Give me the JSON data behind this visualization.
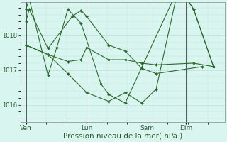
{
  "background_color": "#d8f5f0",
  "grid_color": "#c0ddd8",
  "line_color": "#2d6a2d",
  "marker_color": "#2d6a2d",
  "xlabel": "Pression niveau de la mer( hPa )",
  "xlabel_fontsize": 7.5,
  "yticks": [
    1016,
    1017,
    1018
  ],
  "ylim": [
    1015.5,
    1018.95
  ],
  "xtick_labels": [
    "Ven",
    "Lun",
    "Sam",
    "Dim"
  ],
  "vline_color": "#555555",
  "series": [
    {
      "x": [
        0.0,
        0.3,
        2.0,
        4.2,
        5.0,
        5.5,
        7.5,
        9.0,
        10.5,
        11.8,
        16.0
      ],
      "y": [
        1018.4,
        1018.75,
        1017.62,
        1018.55,
        1018.72,
        1018.55,
        1017.72,
        1017.55,
        1017.05,
        1016.9,
        1017.1
      ]
    },
    {
      "x": [
        0.0,
        0.3,
        2.0,
        2.8,
        3.8,
        5.0,
        6.8,
        7.5,
        9.0,
        13.8,
        14.5,
        15.2,
        17.0
      ],
      "y": [
        1018.75,
        1019.05,
        1016.85,
        1017.65,
        1018.75,
        1018.35,
        1016.6,
        1016.3,
        1016.05,
        1019.35,
        1019.1,
        1018.75,
        1017.1
      ]
    },
    {
      "x": [
        0.0,
        2.0,
        3.8,
        5.0,
        5.5,
        7.5,
        9.0,
        10.5,
        11.8,
        15.2,
        17.0
      ],
      "y": [
        1017.72,
        1017.45,
        1017.25,
        1017.3,
        1017.65,
        1017.3,
        1017.3,
        1017.2,
        1017.15,
        1017.2,
        1017.1
      ]
    },
    {
      "x": [
        0.0,
        2.0,
        3.8,
        5.5,
        7.5,
        9.0,
        10.5,
        11.8,
        13.8,
        14.5,
        15.2,
        17.0
      ],
      "y": [
        1017.72,
        1017.45,
        1016.9,
        1016.35,
        1016.1,
        1016.35,
        1016.05,
        1016.45,
        1019.35,
        1019.1,
        1018.75,
        1017.1
      ]
    }
  ],
  "vlines": [
    0.0,
    5.5,
    11.0,
    14.5
  ],
  "xtick_pos": [
    0.0,
    5.5,
    11.0,
    14.5
  ],
  "xlim": [
    -0.5,
    18.0
  ],
  "figsize": [
    3.2,
    2.0
  ],
  "dpi": 100
}
